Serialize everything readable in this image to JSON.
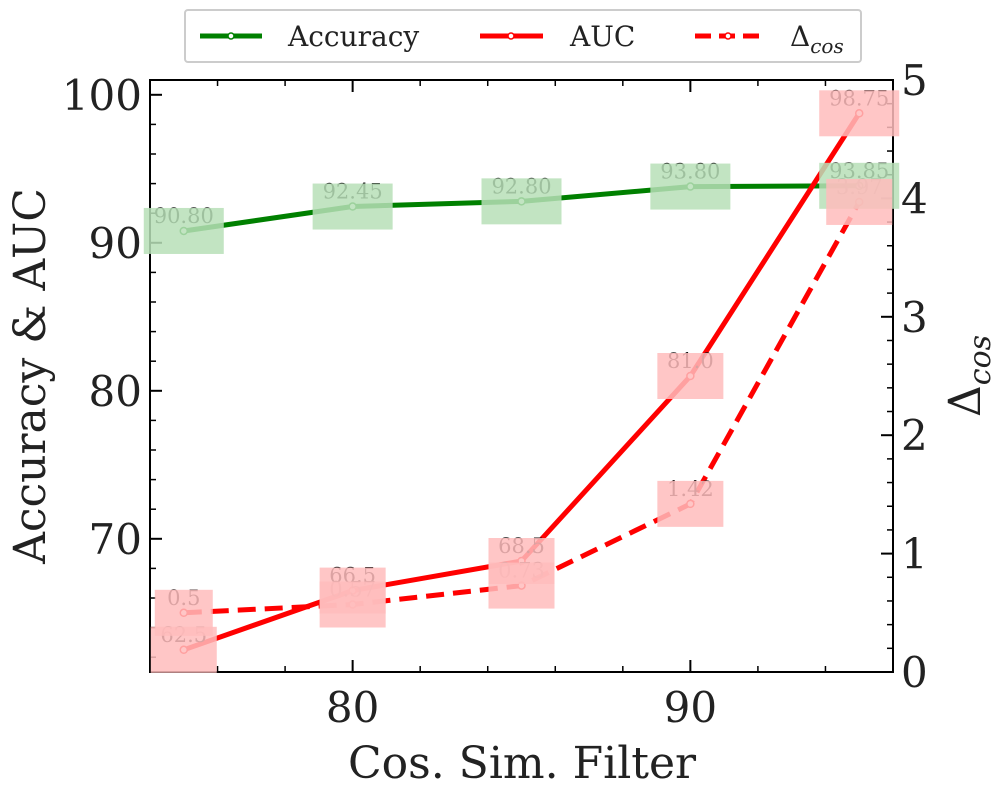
{
  "chart_data": {
    "type": "line",
    "xlabel": "Cos. Sim. Filter",
    "ylabel": "Accuracy & AUC",
    "y2label_base": "Δ",
    "y2label_sub": "cos",
    "x": [
      75,
      80,
      85,
      90,
      95
    ],
    "xlim": [
      74,
      96
    ],
    "ylim": [
      61,
      101
    ],
    "y2lim": [
      0,
      5
    ],
    "xticks": [
      80,
      90
    ],
    "yticks": [
      70,
      80,
      90,
      100
    ],
    "y2ticks": [
      0,
      1,
      2,
      3,
      4,
      5
    ],
    "series": [
      {
        "name": "Accuracy",
        "axis": "left",
        "color": "#008000",
        "label_bg": "#b7dfb7",
        "dash": "solid",
        "values": [
          90.8,
          92.45,
          92.8,
          93.8,
          93.85
        ],
        "labels": [
          "90.80",
          "92.45",
          "92.80",
          "93.80",
          "93.85"
        ]
      },
      {
        "name": "AUC",
        "axis": "left",
        "color": "#ff0000",
        "label_bg": "#ffbcbc",
        "dash": "solid",
        "values": [
          62.5,
          66.5,
          68.5,
          81.0,
          98.75
        ],
        "labels": [
          "62.5",
          "66.5",
          "68.5",
          "81.0",
          "98.75"
        ]
      },
      {
        "name": "Δcos",
        "legend_base": "Δ",
        "legend_sub": "cos",
        "axis": "right",
        "color": "#ff0000",
        "label_bg": "#ffbcbc",
        "dash": "dashed",
        "values": [
          0.5,
          0.57,
          0.73,
          1.42,
          3.97
        ],
        "labels": [
          "0.5",
          "0.57",
          "0.73",
          "1.42",
          "3.97"
        ]
      }
    ],
    "legend": {
      "position": "top-center",
      "entries": [
        "Accuracy",
        "AUC",
        "Δcos"
      ]
    }
  }
}
